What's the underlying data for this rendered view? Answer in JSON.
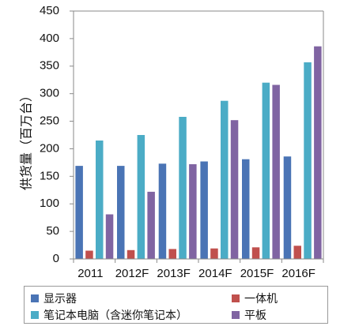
{
  "chart_data": {
    "type": "bar",
    "ylabel": "供货量（百万台）",
    "ylim": [
      0,
      450
    ],
    "yticks": [
      0,
      50,
      100,
      150,
      200,
      250,
      300,
      350,
      400,
      450
    ],
    "grid": false,
    "legend_position": "bottom",
    "categories": [
      "2011",
      "2012F",
      "2013F",
      "2014F",
      "2015F",
      "2016F"
    ],
    "series": [
      {
        "name": "显示器",
        "color": "#4a74b5",
        "values": [
          169,
          169,
          173,
          177,
          181,
          186
        ]
      },
      {
        "name": "一体机",
        "color": "#c0504d",
        "values": [
          15,
          16,
          18,
          19,
          21,
          24
        ]
      },
      {
        "name": "笔记本电脑（含迷你笔记本）",
        "color": "#4bacc6",
        "values": [
          215,
          225,
          258,
          287,
          320,
          357
        ]
      },
      {
        "name": "平板",
        "color": "#8064a2",
        "values": [
          81,
          122,
          172,
          252,
          316,
          386
        ]
      }
    ]
  }
}
